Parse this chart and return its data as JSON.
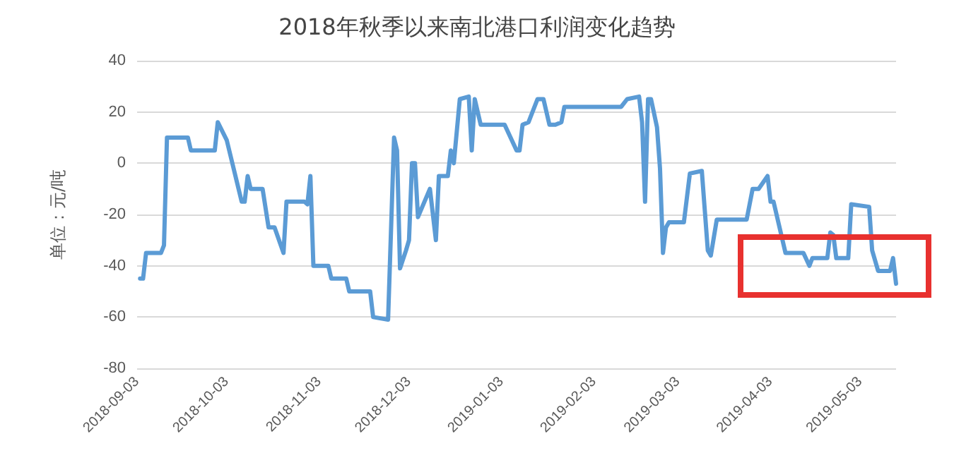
{
  "chart_data": {
    "type": "line",
    "title": "2018年秋季以来南北港口利润变化趋势",
    "ylabel": "单位：元/吨",
    "x": [
      "2018-09-04",
      "2018-09-05",
      "2018-09-06",
      "2018-09-11",
      "2018-09-12",
      "2018-09-13",
      "2018-09-20",
      "2018-09-21",
      "2018-09-29",
      "2018-09-30",
      "2018-10-03",
      "2018-10-08",
      "2018-10-09",
      "2018-10-10",
      "2018-10-11",
      "2018-10-15",
      "2018-10-17",
      "2018-10-19",
      "2018-10-22",
      "2018-10-23",
      "2018-10-29",
      "2018-10-30",
      "2018-10-31",
      "2018-11-01",
      "2018-11-06",
      "2018-11-07",
      "2018-11-12",
      "2018-11-13",
      "2018-11-20",
      "2018-11-21",
      "2018-11-26",
      "2018-11-28",
      "2018-11-29",
      "2018-11-30",
      "2018-12-02",
      "2018-12-03",
      "2018-12-04",
      "2018-12-05",
      "2018-12-06",
      "2018-12-10",
      "2018-12-12",
      "2018-12-13",
      "2018-12-16",
      "2018-12-17",
      "2018-12-18",
      "2018-12-20",
      "2018-12-23",
      "2018-12-24",
      "2018-12-25",
      "2018-12-27",
      "2019-01-04",
      "2019-01-06",
      "2019-01-08",
      "2019-01-09",
      "2019-01-10",
      "2019-01-12",
      "2019-01-15",
      "2019-01-17",
      "2019-01-19",
      "2019-01-21",
      "2019-01-23",
      "2019-01-24",
      "2019-02-12",
      "2019-02-14",
      "2019-02-18",
      "2019-02-19",
      "2019-02-20",
      "2019-02-21",
      "2019-02-22",
      "2019-02-24",
      "2019-02-25",
      "2019-02-26",
      "2019-02-27",
      "2019-02-28",
      "2019-03-05",
      "2019-03-07",
      "2019-03-11",
      "2019-03-13",
      "2019-03-14",
      "2019-03-16",
      "2019-03-26",
      "2019-03-28",
      "2019-03-30",
      "2019-04-02",
      "2019-04-03",
      "2019-04-04",
      "2019-04-08",
      "2019-04-14",
      "2019-04-16",
      "2019-04-17",
      "2019-04-22",
      "2019-04-23",
      "2019-04-24",
      "2019-04-25",
      "2019-04-29",
      "2019-04-30",
      "2019-05-06",
      "2019-05-07",
      "2019-05-09",
      "2019-05-13",
      "2019-05-14",
      "2019-05-15"
    ],
    "series": [
      {
        "color": "#5b9bd5",
        "values": [
          -45,
          -45,
          -35,
          -35,
          -32,
          10,
          10,
          5,
          5,
          16,
          9,
          -15,
          -15,
          -5,
          -10,
          -10,
          -25,
          -25,
          -35,
          -15,
          -15,
          -16,
          -5,
          -40,
          -40,
          -45,
          -45,
          -50,
          -50,
          -60,
          -61,
          10,
          5,
          -41,
          -34,
          -30,
          0,
          0,
          -21,
          -10,
          -30,
          -5,
          -5,
          5,
          0,
          25,
          26,
          5,
          25,
          15,
          15,
          10,
          5,
          5,
          15,
          16,
          25,
          25,
          15,
          15,
          16,
          22,
          22,
          25,
          26,
          16,
          -15,
          25,
          25,
          14,
          -2,
          -35,
          -25,
          -23,
          -23,
          -4,
          -3,
          -34,
          -36,
          -22,
          -22,
          -10,
          -10,
          -5,
          -15,
          -15,
          -35,
          -35,
          -40,
          -37,
          -37,
          -27,
          -28,
          -37,
          -37,
          -16,
          -17,
          -34,
          -42,
          -42,
          -37,
          -47
        ]
      }
    ],
    "xlim": [
      "2018-09-03",
      "2019-05-15"
    ],
    "xticks": [
      "2018-09-03",
      "2018-10-03",
      "2018-11-03",
      "2018-12-03",
      "2019-01-03",
      "2019-02-03",
      "2019-03-03",
      "2019-04-03",
      "2019-05-03"
    ],
    "ylim": [
      -80,
      40
    ],
    "yticks": [
      -80,
      -60,
      -40,
      -20,
      0,
      20,
      40
    ],
    "grid": "y",
    "marker": "none",
    "line_style": "solid"
  }
}
